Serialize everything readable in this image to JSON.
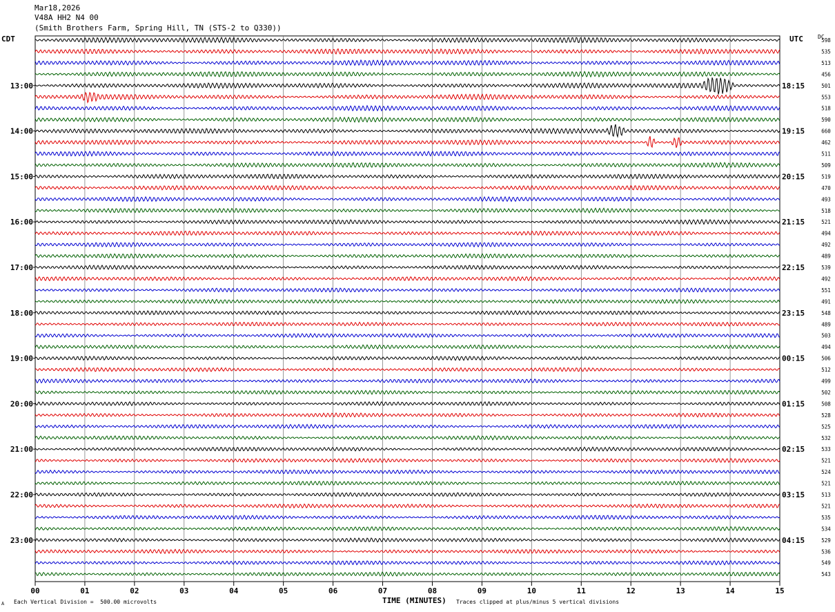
{
  "header": {
    "date": "Mar18,2026",
    "station": "V48A HH2 N4 00",
    "site": "(Smith Brothers Farm, Spring Hill, TN (STS-2 to Q330))"
  },
  "labels": {
    "left_timezone": "CDT",
    "right_timezone": "UTC",
    "dc_label": "DC"
  },
  "footer": {
    "scale_text": "Each Vertical Division =  500.00 microvolts",
    "xlabel": "TIME (MINUTES)",
    "clip_text": "Traces clipped at plus/minus 5 vertical divisions",
    "mark": "A"
  },
  "chart_data": {
    "type": "line",
    "title": "Mar18,2026 V48A HH2 N4 00 (Smith Brothers Farm, Spring Hill, TN (STS-2 to Q330))",
    "xlabel": "TIME (MINUTES)",
    "xlim": [
      0,
      15
    ],
    "x_ticks": [
      "00",
      "01",
      "02",
      "03",
      "04",
      "05",
      "06",
      "07",
      "08",
      "09",
      "10",
      "11",
      "12",
      "13",
      "14",
      "15"
    ],
    "trace_colors": [
      "#000000",
      "#e00000",
      "#0000d0",
      "#006000"
    ],
    "row_minutes": 15,
    "left_hour_labels": [
      "13:00",
      "14:00",
      "15:00",
      "16:00",
      "17:00",
      "18:00",
      "19:00",
      "20:00",
      "21:00",
      "22:00",
      "23:00"
    ],
    "right_hour_labels": [
      "18:15",
      "19:15",
      "20:15",
      "21:15",
      "22:15",
      "23:15",
      "00:15",
      "01:15",
      "02:15",
      "03:15",
      "04:15"
    ],
    "dc_offsets": [
      598,
      535,
      513,
      456,
      501,
      553,
      518,
      590,
      660,
      462,
      511,
      509,
      519,
      470,
      493,
      518,
      521,
      494,
      492,
      489,
      539,
      492,
      551,
      491,
      548,
      489,
      503,
      494,
      506,
      512,
      499,
      502,
      508,
      528,
      525,
      532,
      533,
      521,
      524,
      521,
      513,
      521,
      535,
      534,
      529,
      536,
      549,
      543
    ],
    "events": [
      {
        "row": 4,
        "start_min": 13.4,
        "end_min": 14.1,
        "amp": 12
      },
      {
        "row": 8,
        "start_min": 11.5,
        "end_min": 11.9,
        "amp": 9
      },
      {
        "row": 9,
        "start_min": 12.3,
        "end_min": 12.5,
        "amp": 10
      },
      {
        "row": 9,
        "start_min": 12.8,
        "end_min": 13.05,
        "amp": 8
      },
      {
        "row": 5,
        "start_min": 0.9,
        "end_min": 1.3,
        "amp": 6
      }
    ]
  }
}
